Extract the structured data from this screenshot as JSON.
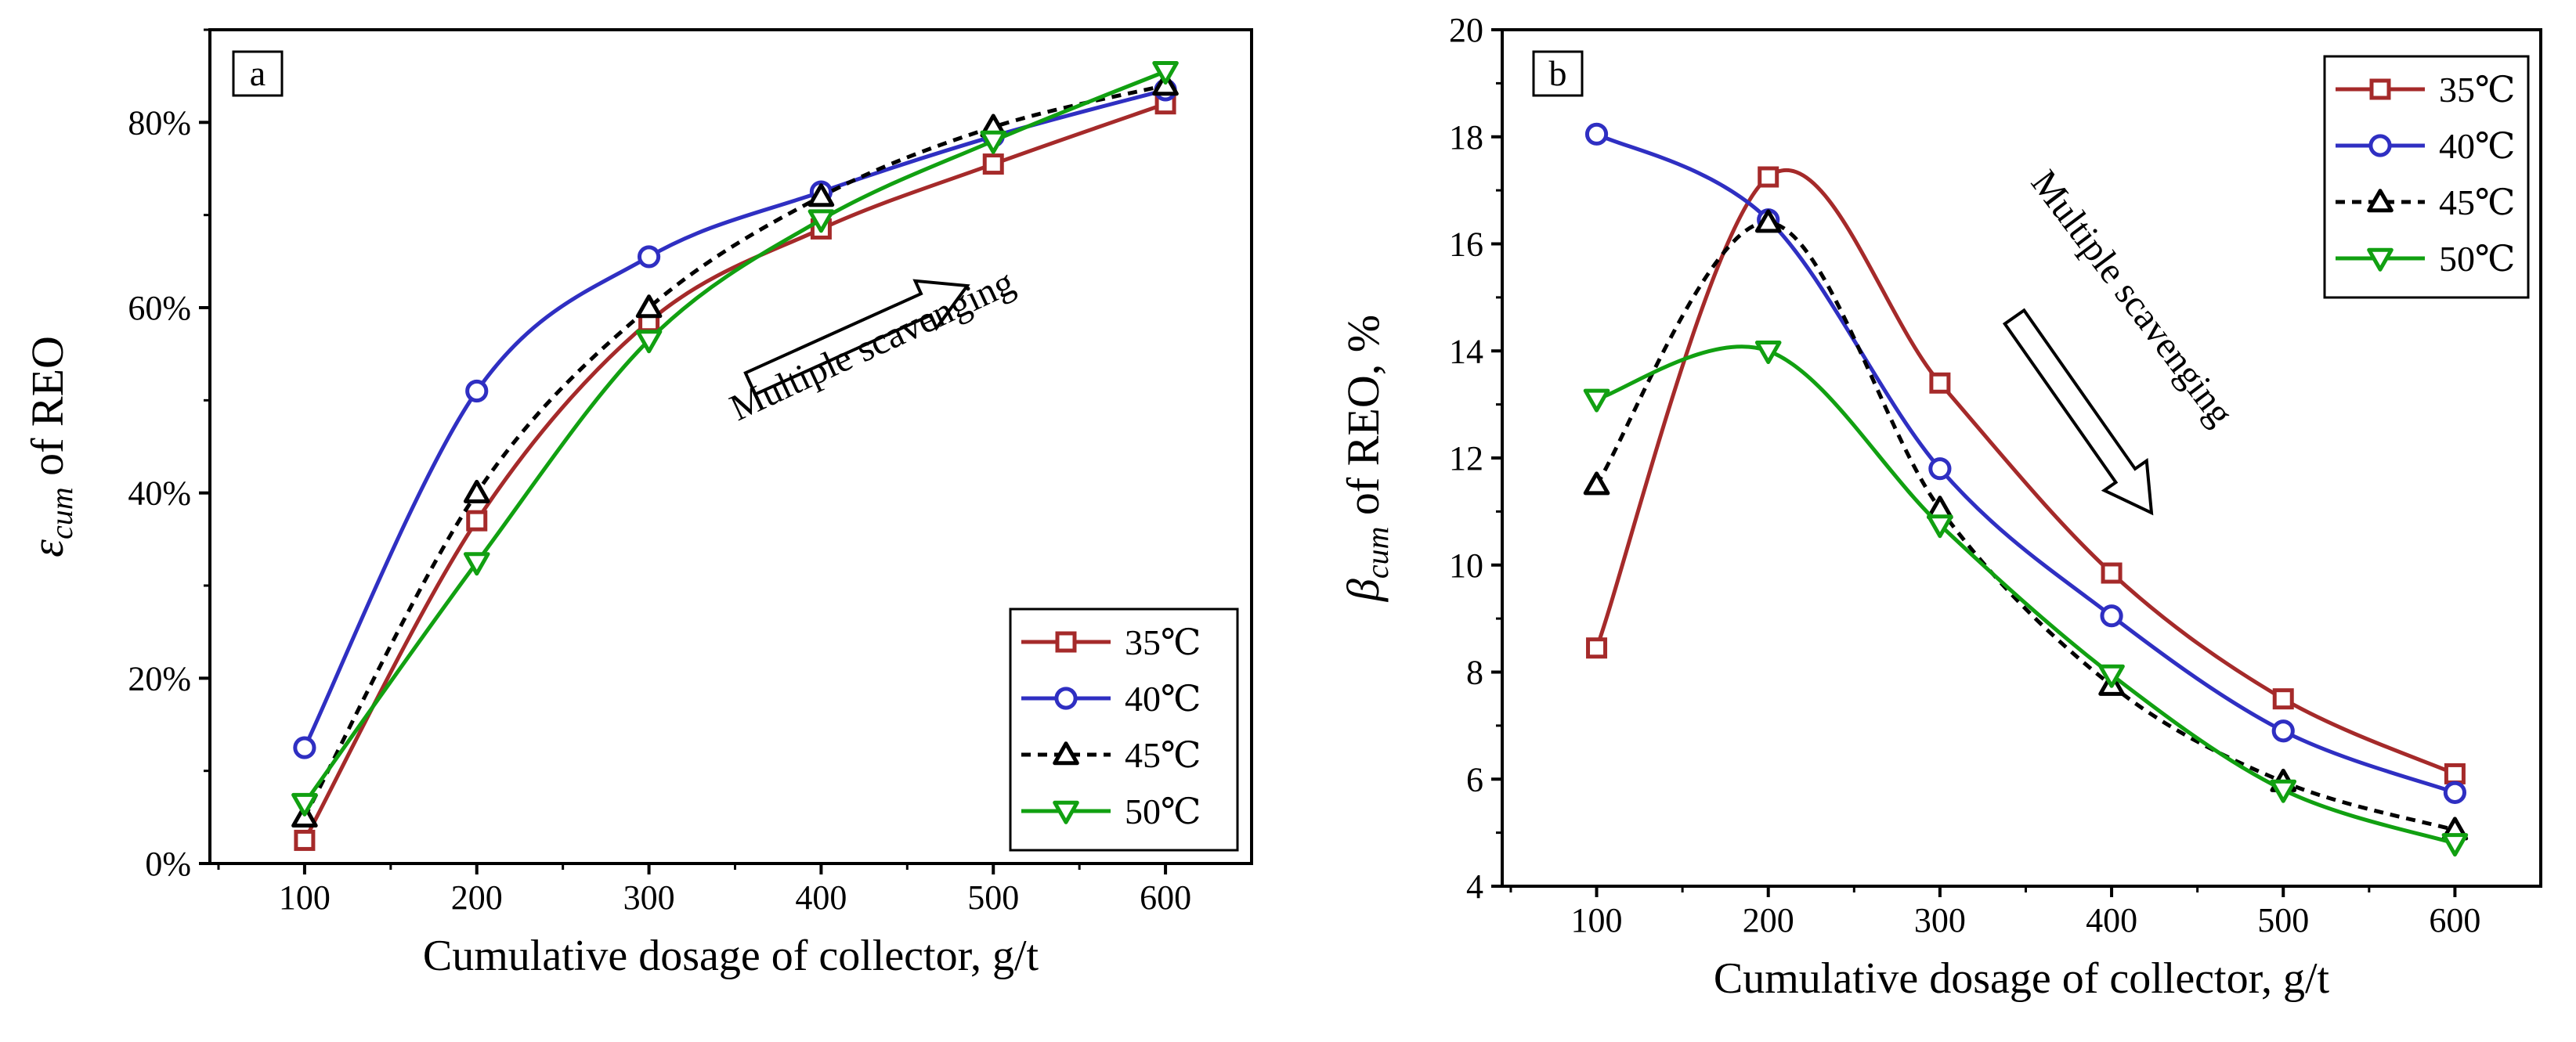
{
  "colors": {
    "35C": "#a52a2a",
    "40C": "#2f2fc2",
    "45C": "#000000",
    "50C": "#11a011",
    "axis": "#000000"
  },
  "chart_data": [
    {
      "type": "line",
      "panel_label": "a",
      "x": [
        100,
        200,
        300,
        400,
        500,
        600
      ],
      "xlabel": "Cumulative dosage of collector, g/t",
      "ylabel_symbol": "ε",
      "ylabel_sub": "cum",
      "ylabel_rest": " of REO",
      "xlim": [
        45,
        650
      ],
      "ylim": [
        0,
        90
      ],
      "xticks": [
        100,
        200,
        300,
        400,
        500,
        600
      ],
      "xtick_labels": [
        "100",
        "200",
        "300",
        "400",
        "500",
        "600"
      ],
      "yticks": [
        0,
        20,
        40,
        60,
        80
      ],
      "ytick_labels": [
        "0%",
        "20%",
        "40%",
        "60%",
        "80%"
      ],
      "annotation": "Multiple scavenging",
      "legend_position": "bottom-right",
      "series": [
        {
          "name": "35℃",
          "marker": "square",
          "dash": "solid",
          "values": [
            2.5,
            37,
            58.5,
            68.5,
            75.5,
            82
          ]
        },
        {
          "name": "40℃",
          "marker": "circle",
          "dash": "solid",
          "values": [
            12.5,
            51,
            65.5,
            72.5,
            78.5,
            83.5
          ]
        },
        {
          "name": "45℃",
          "marker": "triangle-up",
          "dash": "dashed",
          "values": [
            5,
            40,
            60,
            72,
            79.5,
            84
          ]
        },
        {
          "name": "50℃",
          "marker": "triangle-down",
          "dash": "solid",
          "values": [
            6.5,
            32.5,
            56.5,
            69.5,
            78,
            85.5
          ]
        }
      ]
    },
    {
      "type": "line",
      "panel_label": "b",
      "x": [
        100,
        200,
        300,
        400,
        500,
        600
      ],
      "xlabel": "Cumulative dosage of collector, g/t",
      "ylabel_symbol": "β",
      "ylabel_sub": "cum",
      "ylabel_rest": " of REO, %",
      "xlim": [
        45,
        650
      ],
      "ylim": [
        4,
        20
      ],
      "xticks": [
        100,
        200,
        300,
        400,
        500,
        600
      ],
      "xtick_labels": [
        "100",
        "200",
        "300",
        "400",
        "500",
        "600"
      ],
      "yticks": [
        4,
        6,
        8,
        10,
        12,
        14,
        16,
        18,
        20
      ],
      "ytick_labels": [
        "4",
        "6",
        "8",
        "10",
        "12",
        "14",
        "16",
        "18",
        "20"
      ],
      "annotation": "Multiple scavenging",
      "legend_position": "top-right",
      "series": [
        {
          "name": "35℃",
          "marker": "square",
          "dash": "solid",
          "values": [
            8.45,
            17.25,
            13.4,
            9.85,
            7.5,
            6.1
          ]
        },
        {
          "name": "40℃",
          "marker": "circle",
          "dash": "solid",
          "values": [
            18.05,
            16.45,
            11.8,
            9.05,
            6.9,
            5.75
          ]
        },
        {
          "name": "45℃",
          "marker": "triangle-up",
          "dash": "dashed",
          "values": [
            11.5,
            16.4,
            11.05,
            7.75,
            5.95,
            5.05
          ]
        },
        {
          "name": "50℃",
          "marker": "triangle-down",
          "dash": "solid",
          "values": [
            13.1,
            14.0,
            10.75,
            7.95,
            5.8,
            4.8
          ]
        }
      ]
    }
  ]
}
